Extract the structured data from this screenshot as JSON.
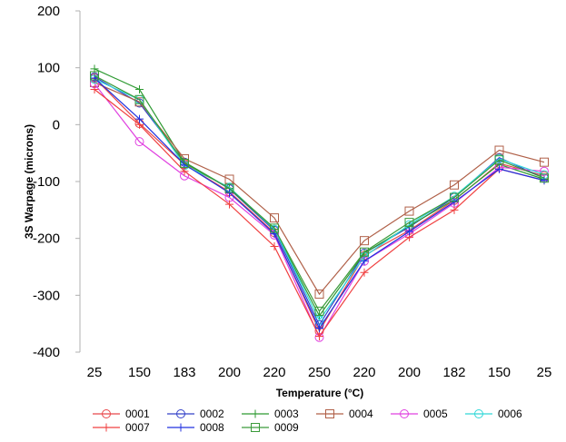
{
  "chart_data": {
    "type": "line",
    "title": "",
    "xlabel": "Temperature (°C)",
    "ylabel": "3S Warpage (microns)",
    "ylim": [
      -400,
      200
    ],
    "yticks": [
      -400,
      -300,
      -200,
      -100,
      0,
      100,
      200
    ],
    "categories": [
      "25",
      "150",
      "183",
      "200",
      "220",
      "250",
      "220",
      "200",
      "182",
      "150",
      "25"
    ],
    "grid": false,
    "legend_position": "bottom",
    "series": [
      {
        "name": "0001",
        "color": "#e8474a",
        "marker": "circle",
        "values": [
          82,
          2,
          -70,
          -118,
          -190,
          -363,
          -230,
          -186,
          -133,
          -68,
          -90
        ]
      },
      {
        "name": "0002",
        "color": "#3340c8",
        "marker": "circle",
        "values": [
          84,
          38,
          -66,
          -113,
          -186,
          -352,
          -226,
          -180,
          -128,
          -58,
          -94
        ]
      },
      {
        "name": "0003",
        "color": "#2e9a32",
        "marker": "plus",
        "values": [
          98,
          62,
          -66,
          -112,
          -184,
          -336,
          -226,
          -178,
          -132,
          -70,
          -96
        ]
      },
      {
        "name": "0004",
        "color": "#b06048",
        "marker": "square",
        "values": [
          74,
          40,
          -60,
          -96,
          -164,
          -298,
          -204,
          -152,
          -106,
          -45,
          -66
        ]
      },
      {
        "name": "0005",
        "color": "#e040e0",
        "marker": "circle",
        "values": [
          72,
          -30,
          -90,
          -128,
          -194,
          -374,
          -240,
          -192,
          -138,
          -75,
          -82
        ]
      },
      {
        "name": "0006",
        "color": "#30d8d8",
        "marker": "circle",
        "values": [
          80,
          44,
          -72,
          -110,
          -184,
          -344,
          -232,
          -176,
          -126,
          -60,
          -88
        ]
      },
      {
        "name": "0007",
        "color": "#f04040",
        "marker": "plus",
        "values": [
          62,
          0,
          -82,
          -140,
          -214,
          -372,
          -260,
          -198,
          -150,
          -78,
          -98
        ]
      },
      {
        "name": "0008",
        "color": "#2030e0",
        "marker": "plus",
        "values": [
          82,
          10,
          -70,
          -120,
          -192,
          -358,
          -240,
          -188,
          -136,
          -78,
          -98
        ]
      },
      {
        "name": "0009",
        "color": "#3a9a3a",
        "marker": "square",
        "values": [
          86,
          44,
          -68,
          -112,
          -182,
          -328,
          -224,
          -172,
          -128,
          -62,
          -94
        ]
      }
    ]
  }
}
